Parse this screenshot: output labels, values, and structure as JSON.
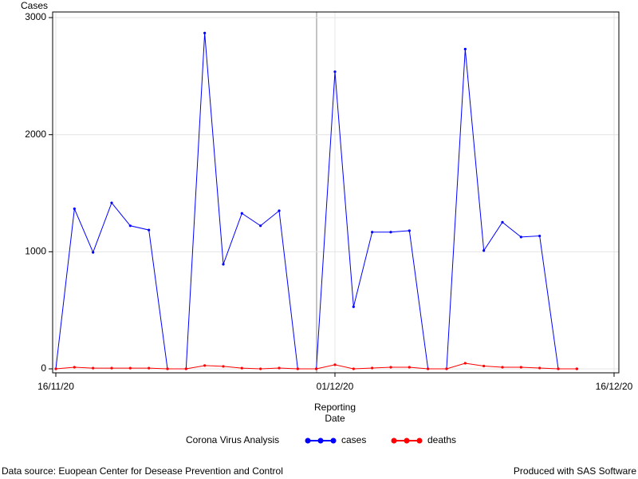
{
  "chart_data": {
    "type": "line",
    "y_label": "Cases",
    "x_label": [
      "Reporting",
      "Date"
    ],
    "legend_title": "Corona Virus Analysis",
    "footnote_left": "Data source: Euopean Center for Desease Prevention and Control",
    "footnote_right": "Produced with SAS Software",
    "x": [
      "2020-11-16",
      "2020-11-17",
      "2020-11-18",
      "2020-11-19",
      "2020-11-20",
      "2020-11-21",
      "2020-11-22",
      "2020-11-23",
      "2020-11-24",
      "2020-11-25",
      "2020-11-26",
      "2020-11-27",
      "2020-11-28",
      "2020-11-29",
      "2020-11-30",
      "2020-12-01",
      "2020-12-02",
      "2020-12-03",
      "2020-12-04",
      "2020-12-05",
      "2020-12-06",
      "2020-12-07",
      "2020-12-08",
      "2020-12-09",
      "2020-12-10",
      "2020-12-11",
      "2020-12-12",
      "2020-12-13",
      "2020-12-14"
    ],
    "series": [
      {
        "name": "cases",
        "color": "#0000ff",
        "values": [
          0,
          1367,
          995,
          1418,
          1222,
          1186,
          0,
          0,
          2868,
          893,
          1328,
          1222,
          1350,
          0,
          0,
          2538,
          530,
          1168,
          1168,
          1180,
          0,
          0,
          2731,
          1010,
          1252,
          1126,
          1135,
          0,
          0
        ]
      },
      {
        "name": "deaths",
        "color": "#ff0000",
        "values": [
          0,
          14,
          6,
          6,
          6,
          6,
          0,
          0,
          28,
          21,
          6,
          0,
          7,
          0,
          0,
          35,
          0,
          7,
          14,
          14,
          0,
          0,
          48,
          24,
          14,
          14,
          7,
          0,
          0
        ]
      }
    ],
    "xlim": [
      "2020-11-16",
      "2020-12-16"
    ],
    "xticks": [
      {
        "value": "2020-11-16",
        "label": "16/11/20"
      },
      {
        "value": "2020-12-01",
        "label": "01/12/20"
      },
      {
        "value": "2020-12-16",
        "label": "16/12/20"
      }
    ],
    "ylim": [
      -34,
      3048
    ],
    "yticks": [
      0,
      1000,
      2000,
      3000
    ],
    "grid": true
  }
}
